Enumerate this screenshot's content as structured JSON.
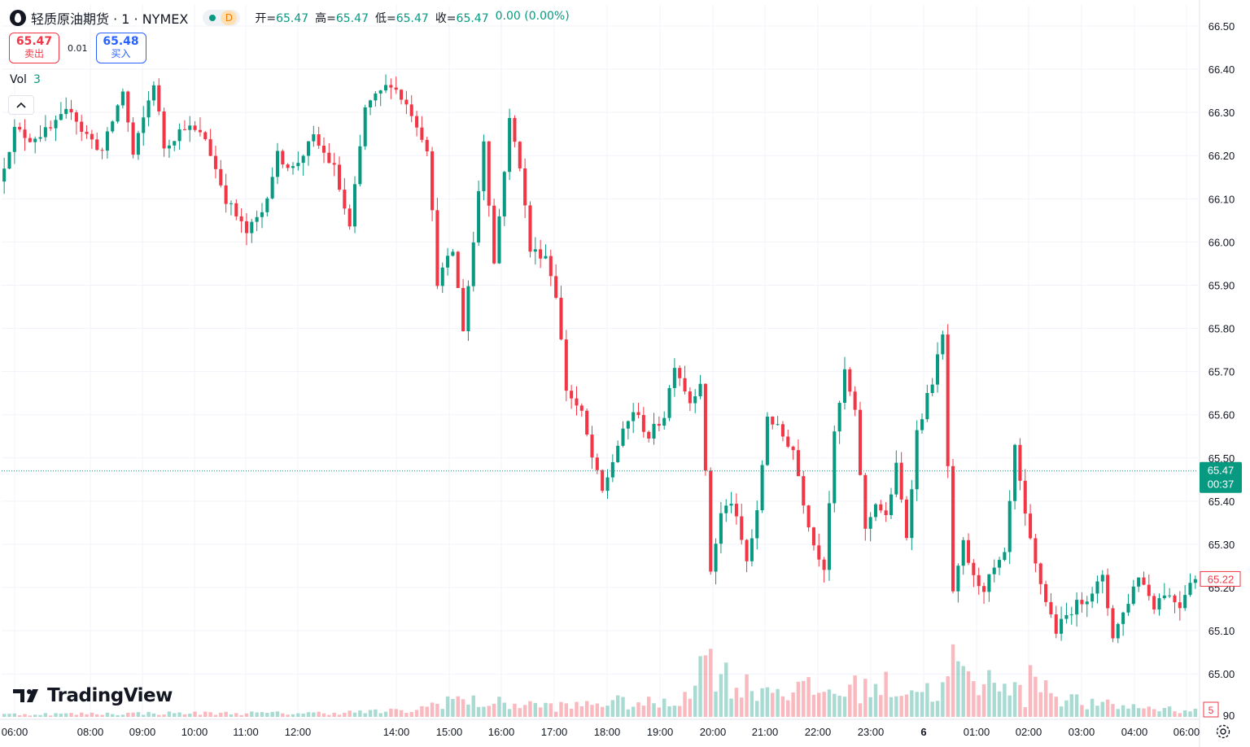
{
  "header": {
    "symbol_title": "轻质原油期货 · 1 · NYMEX",
    "interval_badge": "D",
    "ohlc": [
      {
        "label": "开=",
        "value": "65.47"
      },
      {
        "label": "高=",
        "value": "65.47"
      },
      {
        "label": "低=",
        "value": "65.47"
      },
      {
        "label": "收=",
        "value": "65.47"
      }
    ],
    "change": "0.00 (0.00%)"
  },
  "trade": {
    "sell_price": "65.47",
    "sell_label": "卖出",
    "spread": "0.01",
    "buy_price": "65.48",
    "buy_label": "买入"
  },
  "volume_legend": {
    "label": "Vol",
    "value": "3"
  },
  "collapse_icon": "chevron-up-icon",
  "brand": "TradingView",
  "colors": {
    "up": "#089981",
    "down": "#f23645",
    "text": "#131722",
    "grid": "#f0f3fa"
  },
  "chart_data": {
    "type": "candlestick",
    "x_tick_labels": [
      "06:00",
      "08:00",
      "09:00",
      "10:00",
      "11:00",
      "12:00",
      "14:00",
      "15:00",
      "16:00",
      "17:00",
      "18:00",
      "19:00",
      "20:00",
      "21:00",
      "22:00",
      "23:00",
      "6",
      "01:00",
      "02:00",
      "03:00",
      "04:00",
      "06:00"
    ],
    "y_tick_labels": [
      "66.50",
      "66.40",
      "66.30",
      "66.20",
      "66.10",
      "66.00",
      "65.90",
      "65.80",
      "65.70",
      "65.60",
      "65.50",
      "65.40",
      "65.30",
      "65.20",
      "65.10",
      "65.00"
    ],
    "ylim": [
      64.9,
      66.52
    ],
    "last_price": 65.47,
    "countdown": "00:37",
    "marked_price": "65.22",
    "volume_axis_label": "5",
    "grid": true,
    "price_path": [
      [
        0,
        66.14
      ],
      [
        3,
        66.26
      ],
      [
        6,
        66.24
      ],
      [
        10,
        66.26
      ],
      [
        14,
        66.31
      ],
      [
        16,
        66.26
      ],
      [
        20,
        66.21
      ],
      [
        24,
        66.35
      ],
      [
        26,
        66.2
      ],
      [
        30,
        66.37
      ],
      [
        32,
        66.22
      ],
      [
        36,
        66.27
      ],
      [
        40,
        66.24
      ],
      [
        44,
        66.1
      ],
      [
        48,
        66.02
      ],
      [
        51,
        66.07
      ],
      [
        54,
        66.2
      ],
      [
        57,
        66.17
      ],
      [
        61,
        66.24
      ],
      [
        65,
        66.17
      ],
      [
        68,
        66.03
      ],
      [
        71,
        66.31
      ],
      [
        76,
        66.37
      ],
      [
        80,
        66.3
      ],
      [
        83,
        66.22
      ],
      [
        85,
        65.91
      ],
      [
        88,
        65.98
      ],
      [
        90,
        65.8
      ],
      [
        92,
        66.0
      ],
      [
        94,
        66.24
      ],
      [
        96,
        65.95
      ],
      [
        99,
        66.28
      ],
      [
        101,
        66.18
      ],
      [
        103,
        65.98
      ],
      [
        106,
        65.97
      ],
      [
        108,
        65.88
      ],
      [
        110,
        65.66
      ],
      [
        113,
        65.6
      ],
      [
        115,
        65.5
      ],
      [
        117,
        65.42
      ],
      [
        120,
        65.53
      ],
      [
        123,
        65.61
      ],
      [
        126,
        65.55
      ],
      [
        129,
        65.6
      ],
      [
        131,
        65.72
      ],
      [
        134,
        65.63
      ],
      [
        136,
        65.68
      ],
      [
        138,
        65.24
      ],
      [
        140,
        65.37
      ],
      [
        142,
        65.4
      ],
      [
        145,
        65.26
      ],
      [
        147,
        65.37
      ],
      [
        149,
        65.6
      ],
      [
        152,
        65.55
      ],
      [
        154,
        65.52
      ],
      [
        156,
        65.4
      ],
      [
        158,
        65.3
      ],
      [
        160,
        65.25
      ],
      [
        162,
        65.55
      ],
      [
        164,
        65.7
      ],
      [
        166,
        65.6
      ],
      [
        168,
        65.33
      ],
      [
        170,
        65.4
      ],
      [
        172,
        65.36
      ],
      [
        174,
        65.48
      ],
      [
        176,
        65.32
      ],
      [
        178,
        65.56
      ],
      [
        181,
        65.68
      ],
      [
        183,
        65.78
      ],
      [
        185,
        65.18
      ],
      [
        187,
        65.3
      ],
      [
        189,
        65.22
      ],
      [
        191,
        65.2
      ],
      [
        193,
        65.24
      ],
      [
        195,
        65.27
      ],
      [
        197,
        65.52
      ],
      [
        199,
        65.36
      ],
      [
        201,
        65.25
      ],
      [
        203,
        65.17
      ],
      [
        205,
        65.1
      ],
      [
        208,
        65.15
      ],
      [
        211,
        65.18
      ],
      [
        214,
        65.22
      ],
      [
        216,
        65.09
      ],
      [
        218,
        65.14
      ],
      [
        221,
        65.23
      ],
      [
        224,
        65.16
      ],
      [
        226,
        65.19
      ],
      [
        229,
        65.16
      ],
      [
        231,
        65.22
      ]
    ],
    "volume_path": [
      [
        0,
        0.2
      ],
      [
        30,
        0.3
      ],
      [
        60,
        0.3
      ],
      [
        80,
        0.5
      ],
      [
        86,
        1.5
      ],
      [
        90,
        1.2
      ],
      [
        100,
        1.0
      ],
      [
        110,
        0.8
      ],
      [
        115,
        1.2
      ],
      [
        130,
        1.0
      ],
      [
        137,
        5.0
      ],
      [
        139,
        3.5
      ],
      [
        142,
        2.5
      ],
      [
        160,
        2.0
      ],
      [
        170,
        2.5
      ],
      [
        182,
        2.0
      ],
      [
        184,
        4.8
      ],
      [
        186,
        3.0
      ],
      [
        190,
        2.3
      ],
      [
        193,
        3.8
      ],
      [
        196,
        2.5
      ],
      [
        198,
        1.2
      ],
      [
        200,
        4.3
      ],
      [
        203,
        2.0
      ],
      [
        210,
        1.0
      ],
      [
        220,
        0.8
      ],
      [
        231,
        0.5
      ]
    ]
  }
}
